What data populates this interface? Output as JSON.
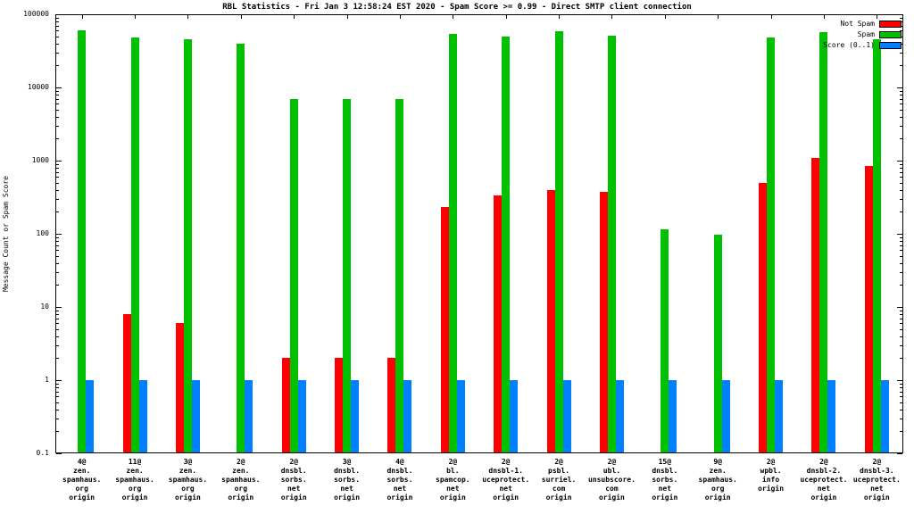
{
  "title": "RBL Statistics - Fri Jan  3 12:58:24 EST 2020 - Spam Score >= 0.99 - Direct SMTP client connection",
  "ylabel": "Message Count or Spam Score",
  "chart_data": {
    "type": "bar",
    "scale": "log",
    "grid": false,
    "legend_position": "top-right",
    "ylim": [
      0.1,
      100000
    ],
    "yticks": [
      0.1,
      1,
      10,
      100,
      1000,
      10000,
      100000
    ],
    "ytick_labels": [
      "0.1",
      "1",
      "10",
      "100",
      "1000",
      "10000",
      "100000"
    ],
    "categories": [
      [
        "4@",
        "zen.",
        "spamhaus.",
        "org",
        "origin"
      ],
      [
        "11@",
        "zen.",
        "spamhaus.",
        "org",
        "origin"
      ],
      [
        "3@",
        "zen.",
        "spamhaus.",
        "org",
        "origin"
      ],
      [
        "2@",
        "zen.",
        "spamhaus.",
        "org",
        "origin"
      ],
      [
        "2@",
        "dnsbl.",
        "sorbs.",
        "net",
        "origin"
      ],
      [
        "3@",
        "dnsbl.",
        "sorbs.",
        "net",
        "origin"
      ],
      [
        "4@",
        "dnsbl.",
        "sorbs.",
        "net",
        "origin"
      ],
      [
        "2@",
        "bl.",
        "spamcop.",
        "net",
        "origin"
      ],
      [
        "2@",
        "dnsbl-1.",
        "uceprotect.",
        "net",
        "origin"
      ],
      [
        "2@",
        "psbl.",
        "surriel.",
        "com",
        "origin"
      ],
      [
        "2@",
        "ubl.",
        "unsubscore.",
        "com",
        "origin"
      ],
      [
        "15@",
        "dnsbl.",
        "sorbs.",
        "net",
        "origin"
      ],
      [
        "9@",
        "zen.",
        "spamhaus.",
        "org",
        "origin"
      ],
      [
        "2@",
        "wpbl.",
        "info",
        "origin"
      ],
      [
        "2@",
        "dnsbl-2.",
        "uceprotect.",
        "net",
        "origin"
      ],
      [
        "2@",
        "dnsbl-3.",
        "uceprotect.",
        "net",
        "origin"
      ]
    ],
    "series": [
      {
        "name": "Not Spam",
        "color": "#ff0000",
        "values": [
          null,
          8,
          6,
          null,
          2,
          2,
          2,
          230,
          330,
          400,
          370,
          null,
          null,
          500,
          1100,
          850
        ]
      },
      {
        "name": "Spam",
        "color": "#00c000",
        "values": [
          60000,
          48000,
          45000,
          40000,
          7000,
          7000,
          7000,
          54000,
          50000,
          58000,
          51000,
          115,
          97,
          48000,
          57000,
          46000
        ]
      },
      {
        "name": "Score (0..1)",
        "color": "#0080ff",
        "values": [
          1,
          1,
          1,
          1,
          1,
          1,
          1,
          1,
          1,
          1,
          1,
          1,
          1,
          1,
          1,
          1
        ]
      }
    ]
  }
}
